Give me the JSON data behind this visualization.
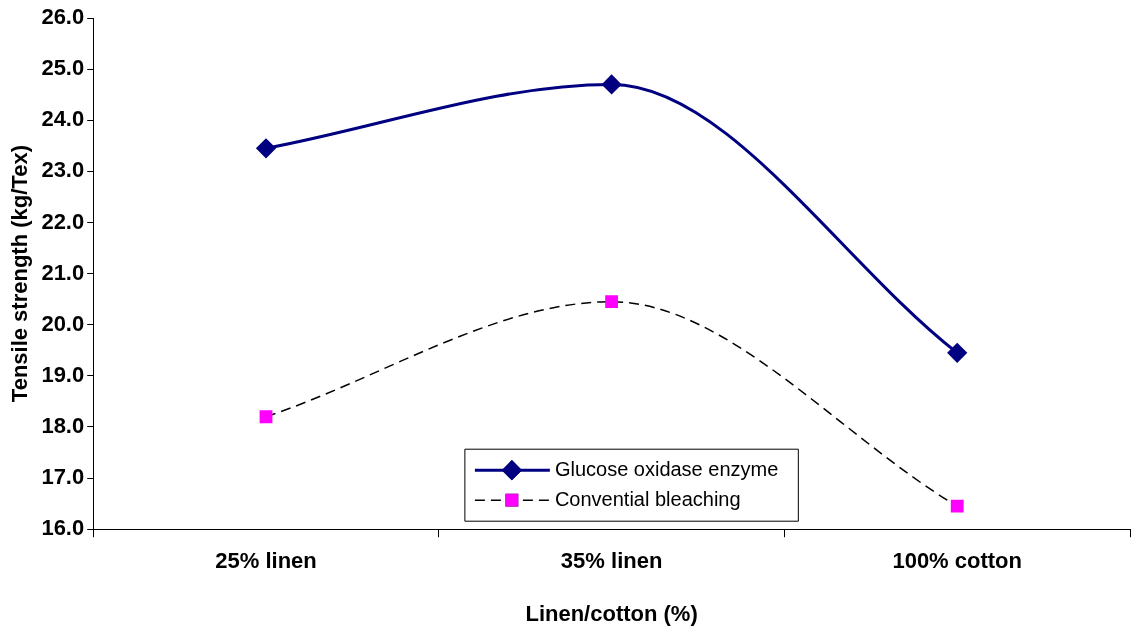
{
  "chart_data": {
    "type": "line",
    "xlabel": "Linen/cotton (%)",
    "ylabel": "Tensile strength (kg/Tex)",
    "categories": [
      "25% linen",
      "35% linen",
      "100% cotton"
    ],
    "series": [
      {
        "name": "Glucose oxidase enzyme",
        "color": "#000080",
        "values": [
          23.45,
          24.7,
          19.45
        ],
        "marker": "diamond",
        "line_style": "solid"
      },
      {
        "name": "Convential bleaching",
        "color": "#ff00ff",
        "values": [
          18.2,
          20.45,
          16.45
        ],
        "marker": "square",
        "line_style": "dashed"
      }
    ],
    "ylim": [
      16,
      26
    ],
    "yticks": [
      {
        "value": 16,
        "label": "16.0"
      },
      {
        "value": 17,
        "label": "17.0"
      },
      {
        "value": 18,
        "label": "18.0"
      },
      {
        "value": 19,
        "label": "19.0"
      },
      {
        "value": 20,
        "label": "20.0"
      },
      {
        "value": 21,
        "label": "21.0"
      },
      {
        "value": 22,
        "label": "22.0"
      },
      {
        "value": 23,
        "label": "23.0"
      },
      {
        "value": 24,
        "label": "24.0"
      },
      {
        "value": 25,
        "label": "25.0"
      },
      {
        "value": 26,
        "label": "26.0"
      }
    ],
    "grid": false,
    "legend": "bottom"
  }
}
